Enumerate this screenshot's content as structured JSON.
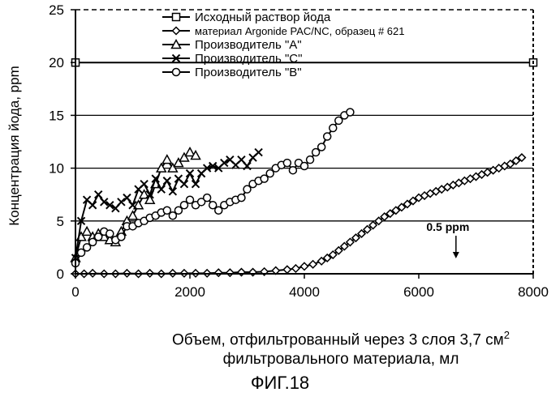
{
  "chart_data": {
    "type": "line",
    "ylabel": "Концентрация йода, ppm",
    "xlabel_line1": "Объем, отфильтрованный через 3 слоя 3,7 см",
    "xlabel_sup": "2",
    "xlabel_line2": "фильтровального материала, мл",
    "xlim": [
      0,
      8000
    ],
    "ylim": [
      0,
      25
    ],
    "x_ticks": [
      "0",
      "2000",
      "4000",
      "6000",
      "8000"
    ],
    "y_ticks": [
      "0",
      "5",
      "10",
      "15",
      "20",
      "25"
    ],
    "grid": "horizontal",
    "legend_position": "top-center",
    "annotation": {
      "text": "0.5 ppm",
      "x": 6650,
      "y": 1.3
    },
    "series": [
      {
        "name": "Исходный раствор йода",
        "marker": "square",
        "x": [
          0,
          8000
        ],
        "y": [
          20,
          20
        ]
      },
      {
        "name": "материал Argonide PAC/NC, образец # 621",
        "marker": "diamond",
        "x": [
          0,
          150,
          300,
          500,
          700,
          900,
          1100,
          1300,
          1500,
          1700,
          1900,
          2100,
          2300,
          2500,
          2700,
          2900,
          3100,
          3300,
          3500,
          3700,
          3850,
          4000,
          4150,
          4300,
          4400,
          4500,
          4600,
          4700,
          4800,
          4900,
          5000,
          5100,
          5200,
          5300,
          5400,
          5500,
          5600,
          5700,
          5800,
          5900,
          6000,
          6100,
          6200,
          6300,
          6400,
          6500,
          6600,
          6700,
          6800,
          6900,
          7000,
          7100,
          7200,
          7300,
          7400,
          7500,
          7600,
          7700,
          7800
        ],
        "y": [
          0,
          0,
          0.05,
          0,
          0,
          0.05,
          0,
          0.05,
          0,
          0.05,
          0.05,
          0.05,
          0.05,
          0.1,
          0.1,
          0.15,
          0.15,
          0.2,
          0.3,
          0.4,
          0.5,
          0.7,
          0.9,
          1.2,
          1.5,
          1.8,
          2.2,
          2.6,
          3.0,
          3.4,
          3.8,
          4.2,
          4.6,
          5.0,
          5.4,
          5.7,
          6.0,
          6.3,
          6.6,
          6.9,
          7.2,
          7.4,
          7.6,
          7.8,
          8.0,
          8.2,
          8.4,
          8.6,
          8.8,
          9.0,
          9.2,
          9.4,
          9.6,
          9.8,
          10.0,
          10.2,
          10.4,
          10.7,
          11.0
        ]
      },
      {
        "name": "Производитель \"A\"",
        "marker": "triangle",
        "x": [
          0,
          100,
          200,
          300,
          400,
          500,
          600,
          700,
          800,
          900,
          1000,
          1100,
          1200,
          1300,
          1400,
          1500,
          1600,
          1700,
          1800,
          1900,
          2000,
          2100
        ],
        "y": [
          1.5,
          3.5,
          4.0,
          3.5,
          3.8,
          3.5,
          3.2,
          3.0,
          4.0,
          5.0,
          5.5,
          6.5,
          7.5,
          7.0,
          8.5,
          10.0,
          10.8,
          10.0,
          10.5,
          11.0,
          11.5,
          11.2
        ]
      },
      {
        "name": "Производитель \"C\"",
        "marker": "x",
        "x": [
          0,
          100,
          200,
          300,
          400,
          500,
          600,
          700,
          800,
          900,
          1000,
          1100,
          1200,
          1300,
          1400,
          1500,
          1600,
          1700,
          1800,
          1900,
          2000,
          2100,
          2200,
          2300,
          2400,
          2500,
          2600,
          2700,
          2800,
          2900,
          3000,
          3100,
          3200
        ],
        "y": [
          1.5,
          5.0,
          7.0,
          6.5,
          7.5,
          6.8,
          6.5,
          6.2,
          6.8,
          7.2,
          6.5,
          8.0,
          8.5,
          7.5,
          9.0,
          8.0,
          8.8,
          7.8,
          9.0,
          8.5,
          9.5,
          8.5,
          9.5,
          10.0,
          10.2,
          10.0,
          10.5,
          10.8,
          10.3,
          10.8,
          10.2,
          11.0,
          11.5
        ]
      },
      {
        "name": "Производитель \"B\"",
        "marker": "circle",
        "x": [
          0,
          100,
          200,
          300,
          400,
          500,
          600,
          700,
          800,
          900,
          1000,
          1100,
          1200,
          1300,
          1400,
          1500,
          1600,
          1700,
          1800,
          1900,
          2000,
          2100,
          2200,
          2300,
          2400,
          2500,
          2600,
          2700,
          2800,
          2900,
          3000,
          3100,
          3200,
          3300,
          3400,
          3500,
          3600,
          3700,
          3800,
          3900,
          4000,
          4100,
          4200,
          4300,
          4400,
          4500,
          4600,
          4700,
          4800
        ],
        "y": [
          1.0,
          2.0,
          2.5,
          3.0,
          3.5,
          4.0,
          3.8,
          3.2,
          3.5,
          4.5,
          4.5,
          4.8,
          5.0,
          5.3,
          5.5,
          5.8,
          6.0,
          5.5,
          6.0,
          6.5,
          7.0,
          6.5,
          6.8,
          7.2,
          6.5,
          6.0,
          6.5,
          6.8,
          7.0,
          7.2,
          8.0,
          8.5,
          8.8,
          9.0,
          9.5,
          10.0,
          10.3,
          10.5,
          9.8,
          10.5,
          10.2,
          10.8,
          11.5,
          12.0,
          13.0,
          13.8,
          14.5,
          15.0,
          15.3
        ]
      }
    ]
  },
  "caption": "ФИГ.18"
}
